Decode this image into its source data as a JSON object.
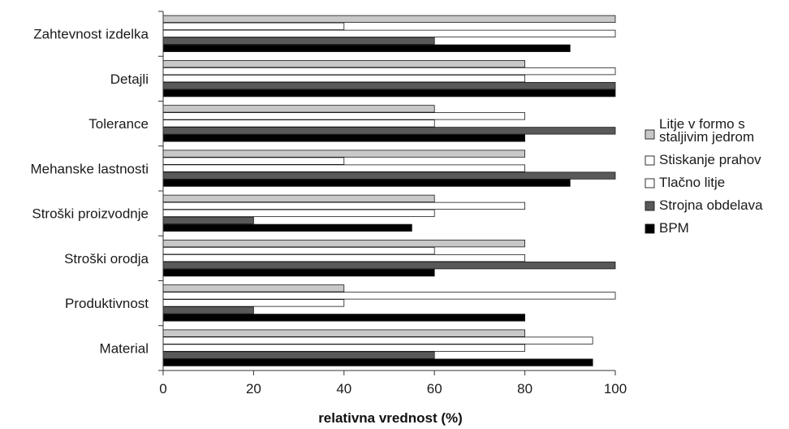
{
  "chart_data": {
    "type": "bar",
    "orientation": "horizontal",
    "categories": [
      "Zahtevnost izdelka",
      "Detajli",
      "Tolerance",
      "Mehanske lastnosti",
      "Stroški proizvodnje",
      "Stroški orodja",
      "Produktivnost",
      "Material"
    ],
    "series": [
      {
        "name": "Litje v formo s staljivim jedrom",
        "legend_lines": [
          "Litje v formo s",
          "staljivim jedrom"
        ],
        "color": "#c8c8c8",
        "values": [
          100,
          80,
          60,
          80,
          60,
          80,
          40,
          80
        ]
      },
      {
        "name": "Stiskanje prahov",
        "legend_lines": [
          "Stiskanje prahov"
        ],
        "color": "#ffffff",
        "values": [
          40,
          100,
          80,
          40,
          80,
          60,
          100,
          95
        ]
      },
      {
        "name": "Tlačno litje",
        "legend_lines": [
          "Tlačno litje"
        ],
        "color": "#ffffff",
        "values": [
          100,
          80,
          60,
          80,
          60,
          80,
          40,
          80
        ]
      },
      {
        "name": "Strojna obdelava",
        "legend_lines": [
          "Strojna obdelava"
        ],
        "color": "#595959",
        "values": [
          60,
          100,
          100,
          100,
          20,
          100,
          20,
          60
        ]
      },
      {
        "name": "BPM",
        "legend_lines": [
          "BPM"
        ],
        "color": "#000000",
        "values": [
          90,
          100,
          80,
          90,
          55,
          60,
          80,
          95
        ]
      }
    ],
    "xticks": [
      0,
      20,
      40,
      60,
      80,
      100
    ],
    "xlim": [
      0,
      100
    ],
    "xlabel": "relativna vrednost (%)",
    "ylabel": "",
    "title": "",
    "grid": false,
    "legend_position": "right"
  }
}
